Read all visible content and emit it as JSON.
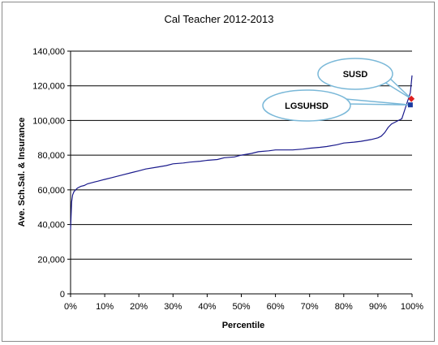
{
  "chart_data": {
    "type": "line",
    "title": "Cal Teacher 2012-2013",
    "xlabel": "Percentile",
    "ylabel": "Ave. Sch.Sal. & Insurance",
    "xlim": [
      0,
      100
    ],
    "ylim": [
      0,
      140000
    ],
    "x_ticks": [
      "0%",
      "10%",
      "20%",
      "30%",
      "40%",
      "50%",
      "60%",
      "70%",
      "80%",
      "90%",
      "100%"
    ],
    "y_ticks": [
      "0",
      "20,000",
      "40,000",
      "60,000",
      "80,000",
      "100,000",
      "120,000",
      "140,000"
    ],
    "grid": "horizontal",
    "series": [
      {
        "color": "#1a1a8c",
        "x": [
          0,
          0.3,
          0.6,
          1,
          1.5,
          2,
          3,
          4,
          5,
          6,
          7,
          8,
          10,
          12,
          15,
          18,
          20,
          22,
          25,
          28,
          30,
          33,
          35,
          38,
          40,
          43,
          45,
          48,
          50,
          53,
          55,
          58,
          60,
          63,
          65,
          68,
          70,
          73,
          75,
          78,
          80,
          83,
          85,
          88,
          90,
          91,
          92,
          93,
          94,
          95,
          96,
          97,
          97.5,
          98,
          98.5,
          99,
          99.5,
          100
        ],
        "y": [
          37000,
          53000,
          57000,
          59000,
          60000,
          61000,
          62000,
          62500,
          63500,
          64000,
          64500,
          65000,
          66000,
          67000,
          68500,
          70000,
          71000,
          72000,
          73000,
          74000,
          75000,
          75500,
          76000,
          76500,
          77000,
          77500,
          78500,
          79000,
          80000,
          81000,
          82000,
          82500,
          83000,
          83000,
          83000,
          83500,
          84000,
          84500,
          85000,
          86000,
          87000,
          87500,
          88000,
          89000,
          90000,
          91000,
          93000,
          96000,
          98000,
          99000,
          100000,
          101000,
          104000,
          107000,
          110000,
          113000,
          116000,
          126000
        ]
      }
    ],
    "markers": [
      {
        "label": "SUSD",
        "x": 99.8,
        "y": 112500,
        "color": "#e02020"
      },
      {
        "label": "LGSUHSD",
        "x": 99.5,
        "y": 109000,
        "color": "#1a3aa0"
      }
    ]
  }
}
